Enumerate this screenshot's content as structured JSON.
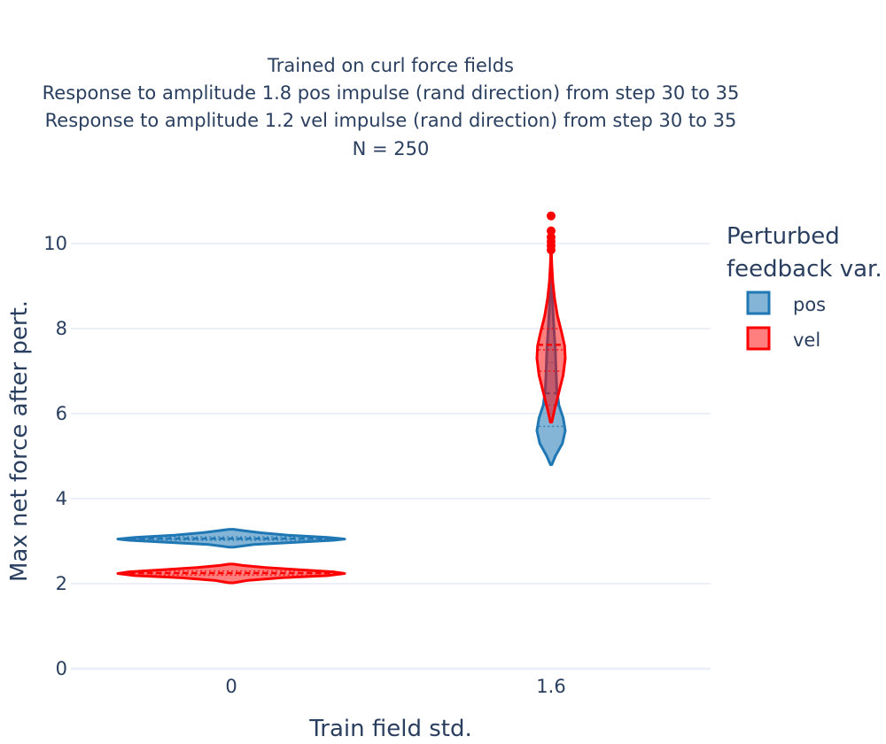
{
  "chart_data": {
    "type": "violin",
    "title_lines": [
      "Trained on curl force fields",
      "Response to amplitude 1.8 pos impulse (rand direction) from step 30 to 35",
      "Response to amplitude 1.2 vel impulse (rand direction) from step 30 to 35",
      "N = 250"
    ],
    "xlabel": "Train field std.",
    "ylabel": "Max net force after pert.",
    "categories": [
      "0",
      "1.6"
    ],
    "ylim": [
      0,
      10.7
    ],
    "yticks": [
      0,
      2,
      4,
      6,
      8,
      10
    ],
    "grid": true,
    "legend": {
      "title_lines": [
        "Perturbed",
        "feedback var."
      ],
      "placement": "right"
    },
    "series": [
      {
        "name": "pos",
        "color": "#1f77b4",
        "fill": "rgba(31,119,180,0.55)",
        "groups": [
          {
            "category": "0",
            "min": 2.86,
            "max": 3.28,
            "mean": 3.06,
            "median": 3.05,
            "q1": 3.02,
            "q3": 3.1,
            "density": [
              [
                2.86,
                0.02
              ],
              [
                2.92,
                0.2
              ],
              [
                2.97,
                0.55
              ],
              [
                3.02,
                0.9
              ],
              [
                3.05,
                1.0
              ],
              [
                3.09,
                0.85
              ],
              [
                3.14,
                0.5
              ],
              [
                3.2,
                0.25
              ],
              [
                3.25,
                0.1
              ],
              [
                3.28,
                0.02
              ]
            ],
            "outliers": []
          },
          {
            "category": "1.6",
            "min": 4.8,
            "max": 9.4,
            "mean": 6.48,
            "median": 6.2,
            "q1": 5.7,
            "q3": 7.2,
            "density": [
              [
                4.8,
                0.05
              ],
              [
                5.0,
                0.3
              ],
              [
                5.3,
                0.8
              ],
              [
                5.6,
                1.0
              ],
              [
                5.9,
                0.85
              ],
              [
                6.2,
                0.55
              ],
              [
                6.6,
                0.4
              ],
              [
                7.0,
                0.35
              ],
              [
                7.5,
                0.3
              ],
              [
                8.0,
                0.2
              ],
              [
                8.5,
                0.12
              ],
              [
                9.0,
                0.05
              ],
              [
                9.4,
                0.02
              ]
            ],
            "outliers": []
          }
        ]
      },
      {
        "name": "vel",
        "color": "#ff0000",
        "fill": "rgba(255,0,0,0.5)",
        "groups": [
          {
            "category": "0",
            "min": 2.02,
            "max": 2.46,
            "mean": 2.25,
            "median": 2.24,
            "q1": 2.2,
            "q3": 2.3,
            "density": [
              [
                2.02,
                0.02
              ],
              [
                2.08,
                0.15
              ],
              [
                2.14,
                0.45
              ],
              [
                2.19,
                0.85
              ],
              [
                2.24,
                1.0
              ],
              [
                2.28,
                0.9
              ],
              [
                2.33,
                0.6
              ],
              [
                2.38,
                0.3
              ],
              [
                2.43,
                0.1
              ],
              [
                2.46,
                0.02
              ]
            ],
            "outliers": []
          },
          {
            "category": "1.6",
            "min": 5.8,
            "max": 9.8,
            "mean": 7.62,
            "median": 7.5,
            "q1": 7.0,
            "q3": 8.0,
            "density": [
              [
                5.8,
                0.05
              ],
              [
                6.1,
                0.25
              ],
              [
                6.5,
                0.55
              ],
              [
                6.9,
                0.85
              ],
              [
                7.3,
                1.0
              ],
              [
                7.6,
                0.95
              ],
              [
                7.9,
                0.75
              ],
              [
                8.3,
                0.45
              ],
              [
                8.7,
                0.25
              ],
              [
                9.1,
                0.12
              ],
              [
                9.5,
                0.05
              ],
              [
                9.8,
                0.02
              ]
            ],
            "outliers": [
              9.85,
              9.95,
              10.05,
              10.15,
              10.3,
              10.65
            ]
          }
        ]
      }
    ]
  }
}
